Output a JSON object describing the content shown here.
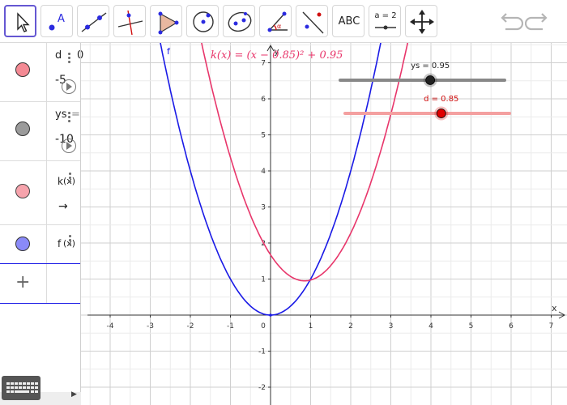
{
  "toolbar": {
    "tools": [
      "move",
      "point",
      "line",
      "perpendicular-line",
      "polygon",
      "circle-center-point",
      "conic",
      "angle",
      "reflect",
      "text",
      "slider",
      "move-graphics-view"
    ],
    "text_tool_label": "ABC",
    "slider_tool_label": "a = 2"
  },
  "algebra": {
    "items": [
      {
        "name": "d",
        "value_clip": "0",
        "min_label": "-5",
        "color": "#e0474c"
      },
      {
        "name": "ys",
        "value_clip": "=",
        "min_label": "-10",
        "color": "#444444"
      },
      {
        "name": "k",
        "value_clip": "(x)",
        "color": "#f07f8e"
      },
      {
        "name": "f",
        "value_clip": "(x)",
        "color": "#6f6ff5"
      }
    ],
    "arrow_glyph": "→",
    "add_glyph": "+"
  },
  "graph": {
    "k_label": "k(x)  =  (x − 0.85)² + 0.95",
    "f_label": "f",
    "x_axis_label": "x",
    "y_axis_label": "y",
    "x_ticks": [
      "-4",
      "-3",
      "-2",
      "-1",
      "0",
      "1",
      "2",
      "3",
      "4",
      "5",
      "6",
      "7"
    ],
    "y_ticks": [
      "7",
      "6",
      "5",
      "4",
      "3",
      "2",
      "1",
      "-1",
      "-2"
    ],
    "f_color": "#1a1ae6",
    "k_color": "#e8366b",
    "sliders": [
      {
        "label": "ys = 0.95",
        "value": 0.95,
        "min": -10,
        "max": 10,
        "color": "#222222",
        "track": "#888888"
      },
      {
        "label": "d = 0.85",
        "value": 0.85,
        "min": -5,
        "max": 5,
        "color": "#e00000",
        "track": "#f4a0a0"
      }
    ]
  },
  "chart_data": {
    "type": "line",
    "title": "",
    "xlabel": "x",
    "ylabel": "y",
    "xlim": [
      -4,
      7
    ],
    "ylim": [
      -2,
      7
    ],
    "grid": true,
    "series": [
      {
        "name": "f",
        "expr": "x^2",
        "vertex": [
          0,
          0
        ],
        "x": [
          -2.5,
          -2,
          -1,
          0,
          1,
          2,
          2.5
        ],
        "y": [
          6.25,
          4,
          1,
          0,
          1,
          4,
          6.25
        ]
      },
      {
        "name": "k",
        "expr": "(x-0.85)^2+0.95",
        "vertex": [
          0.85,
          0.95
        ],
        "x": [
          -1.6,
          -1,
          0,
          0.85,
          2,
          3,
          3.3
        ],
        "y": [
          6.95,
          4.37,
          1.67,
          0.95,
          2.27,
          5.57,
          6.95
        ]
      }
    ]
  }
}
